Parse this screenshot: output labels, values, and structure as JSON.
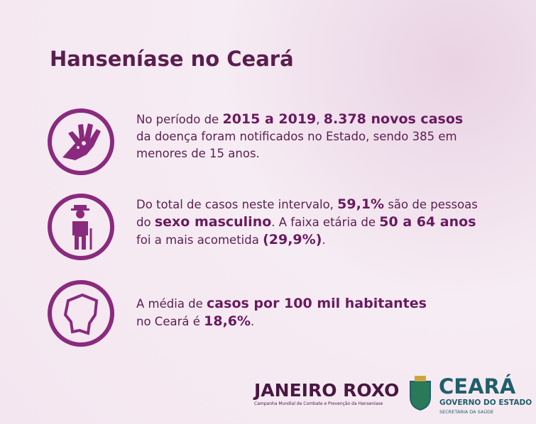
{
  "title": "Hanseníase no Ceará",
  "items": [
    {
      "lines": [
        [
          {
            "text": "No período de ",
            "bold": false
          },
          {
            "text": "2015 a 2019",
            "bold": true
          },
          {
            "text": ", ",
            "bold": false
          },
          {
            "text": "8.378 novos casos",
            "bold": true
          }
        ],
        [
          {
            "text": "da doença foram notificados no Estado, sendo 385 em",
            "bold": false
          }
        ],
        [
          {
            "text": "menores de 15 anos.",
            "bold": false
          }
        ]
      ]
    },
    {
      "lines": [
        [
          {
            "text": "Do total de casos neste intervalo, ",
            "bold": false
          },
          {
            "text": "59,1%",
            "bold": true
          },
          {
            "text": " são de pessoas",
            "bold": false
          }
        ],
        [
          {
            "text": "do ",
            "bold": false
          },
          {
            "text": "sexo masculino",
            "bold": true
          },
          {
            "text": ". A faixa etária de ",
            "bold": false
          },
          {
            "text": "50 a 64 anos",
            "bold": true
          }
        ],
        [
          {
            "text": "foi a mais acometida ",
            "bold": false
          },
          {
            "text": "(29,9%)",
            "bold": true
          },
          {
            "text": ".",
            "bold": false
          }
        ]
      ]
    },
    {
      "lines": [
        [
          {
            "text": "A média de ",
            "bold": false
          },
          {
            "text": "casos por 100 mil habitantes",
            "bold": true
          }
        ],
        [
          {
            "text": "no Ceará é ",
            "bold": false
          },
          {
            "text": "18,6%",
            "bold": true
          },
          {
            "text": ".",
            "bold": false
          }
        ]
      ]
    }
  ],
  "footer": {
    "campaign": "JANEIRO ROXO",
    "campaign_sub": "Campanha Mundial de Combate e Prevenção da Hanseníase",
    "brand": "CEARÁ",
    "brand_sub": "GOVERNO DO ESTADO",
    "brand_sub2": "SECRETARIA DA SAÚDE"
  }
}
